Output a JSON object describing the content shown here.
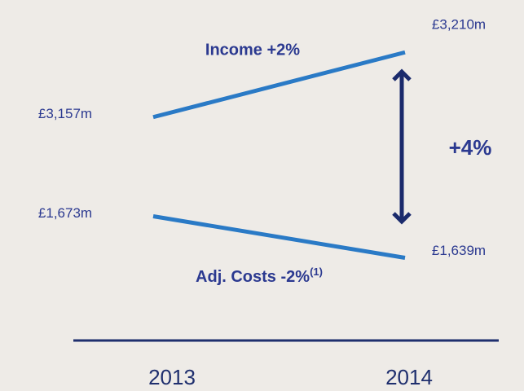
{
  "chart_data": {
    "type": "line",
    "categories": [
      "2013",
      "2014"
    ],
    "series": [
      {
        "name": "Income",
        "color": "#2a7ac6",
        "values": [
          3157,
          3210
        ],
        "value_labels": [
          "£3,157m",
          "£3,210m"
        ]
      },
      {
        "name": "Adj. Costs",
        "color": "#2a7ac6",
        "values": [
          1673,
          1639
        ],
        "value_labels": [
          "£1,673m",
          "£1,639m"
        ]
      }
    ],
    "annotations": {
      "income": "Income +2%",
      "costs": "Adj. Costs -2%",
      "costs_note": "(1)",
      "gap": "+4%"
    }
  }
}
